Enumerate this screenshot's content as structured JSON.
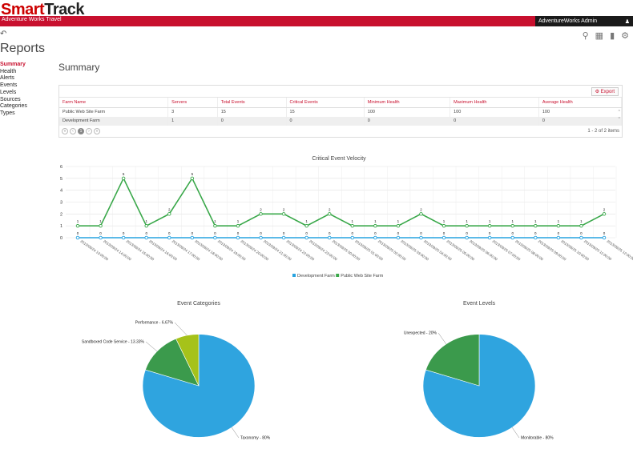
{
  "app": {
    "logo_a": "Smart",
    "logo_b": "Track",
    "org": "Adventure Works Travel",
    "user": "AdventureWorks Admin"
  },
  "page": {
    "title": "Reports",
    "section": "Summary"
  },
  "nav": [
    "Summary",
    "Health",
    "Alerts",
    "Events",
    "Levels",
    "Sources",
    "Categories",
    "Types"
  ],
  "grid": {
    "export_label": "Export",
    "columns": [
      "Farm Name",
      "Servers",
      "Total Events",
      "Critical Events",
      "Minimum Health",
      "Maximum Health",
      "Average Health"
    ],
    "rows": [
      [
        "Public Web Site Farm",
        "3",
        "15",
        "15",
        "100",
        "100",
        "100"
      ],
      [
        "Development Farm",
        "1",
        "0",
        "0",
        "0",
        "0",
        "0"
      ]
    ],
    "pager_current": "1",
    "pager_info": "1 - 2 of 2 items"
  },
  "chart_data": [
    {
      "type": "line",
      "title": "Critical Event Velocity",
      "ylim": [
        0,
        6
      ],
      "yticks": [
        0,
        1,
        2,
        3,
        4,
        5,
        6
      ],
      "x": [
        "2013/09/24 13:00:00",
        "2013/09/24 14:00:00",
        "2013/09/24 15:00:00",
        "2013/09/24 16:00:00",
        "2013/09/24 17:00:00",
        "2013/09/24 18:00:00",
        "2013/09/24 19:00:00",
        "2013/09/24 20:00:00",
        "2013/09/24 21:00:00",
        "2013/09/24 22:00:00",
        "2013/09/24 23:00:00",
        "2013/09/25 00:00:00",
        "2013/09/25 01:00:00",
        "2013/09/25 02:00:00",
        "2013/09/25 03:00:00",
        "2013/09/25 04:00:00",
        "2013/09/25 05:00:00",
        "2013/09/25 06:00:00",
        "2013/09/25 07:00:00",
        "2013/09/25 08:00:00",
        "2013/09/25 09:00:00",
        "2013/09/25 10:00:00",
        "2013/09/25 11:00:00",
        "2013/09/25 12:00:00"
      ],
      "series": [
        {
          "name": "Development Farm",
          "color": "#27a3e0",
          "values": [
            0,
            0,
            0,
            0,
            0,
            0,
            0,
            0,
            0,
            0,
            0,
            0,
            0,
            0,
            0,
            0,
            0,
            0,
            0,
            0,
            0,
            0,
            0,
            0
          ]
        },
        {
          "name": "Public Web Site Farm",
          "color": "#3aa84a",
          "values": [
            1,
            1,
            5,
            1,
            2,
            5,
            1,
            1,
            2,
            2,
            1,
            2,
            1,
            1,
            1,
            2,
            1,
            1,
            1,
            1,
            1,
            1,
            1,
            2
          ]
        }
      ],
      "legend": "bottom",
      "grid": true
    },
    {
      "type": "pie",
      "title": "Event Categories",
      "slices": [
        {
          "label": "Taxonomy - 80%",
          "value": 80,
          "color": "#2fa4df"
        },
        {
          "label": "Sandboxed Code Service - 13.33%",
          "value": 13.33,
          "color": "#3b9a4c"
        },
        {
          "label": "Performance - 6.67%",
          "value": 6.67,
          "color": "#a6c21a"
        }
      ]
    },
    {
      "type": "pie",
      "title": "Event Levels",
      "slices": [
        {
          "label": "Monitorable - 80%",
          "value": 80,
          "color": "#2fa4df"
        },
        {
          "label": "Unexpected - 20%",
          "value": 20,
          "color": "#3b9a4c"
        }
      ]
    }
  ]
}
